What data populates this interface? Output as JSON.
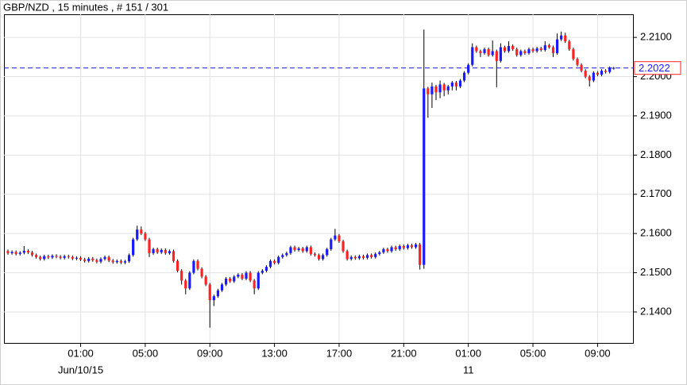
{
  "chart_data": {
    "type": "candlestick",
    "title": "GBP/NZD , 15 minutes , # 151 / 301",
    "categories": [
      null,
      null,
      null,
      null,
      null,
      null,
      null,
      null,
      null,
      null,
      null,
      null,
      null,
      null,
      null,
      null,
      null,
      null,
      "01:00",
      null,
      null,
      null,
      null,
      null,
      null,
      null,
      null,
      null,
      null,
      null,
      null,
      null,
      null,
      null,
      "05:00",
      null,
      null,
      null,
      null,
      null,
      null,
      null,
      null,
      null,
      null,
      null,
      null,
      null,
      null,
      null,
      "09:00",
      null,
      null,
      null,
      null,
      null,
      null,
      null,
      null,
      null,
      null,
      null,
      null,
      null,
      null,
      null,
      "13:00",
      null,
      null,
      null,
      null,
      null,
      null,
      null,
      null,
      null,
      null,
      null,
      null,
      null,
      null,
      null,
      "17:00",
      null,
      null,
      null,
      null,
      null,
      null,
      null,
      null,
      null,
      null,
      null,
      null,
      null,
      null,
      null,
      "21:00",
      null,
      null,
      null,
      null,
      null,
      null,
      null,
      null,
      null,
      null,
      null,
      null,
      null,
      null,
      null,
      "01:00",
      null,
      null,
      null,
      null,
      null,
      null,
      null,
      null,
      null,
      null,
      null,
      null,
      null,
      null,
      null,
      "05:00",
      null,
      null,
      null,
      null,
      null,
      null,
      null,
      null,
      null,
      null,
      null,
      null,
      null,
      null,
      null,
      "09:00",
      null,
      null,
      null,
      null
    ],
    "dates": [
      null,
      null,
      null,
      null,
      null,
      null,
      null,
      null,
      null,
      null,
      null,
      null,
      null,
      null,
      null,
      null,
      null,
      null,
      "Jun/10/15",
      null,
      null,
      null,
      null,
      null,
      null,
      null,
      null,
      null,
      null,
      null,
      null,
      null,
      null,
      null,
      null,
      null,
      null,
      null,
      null,
      null,
      null,
      null,
      null,
      null,
      null,
      null,
      null,
      null,
      null,
      null,
      null,
      null,
      null,
      null,
      null,
      null,
      null,
      null,
      null,
      null,
      null,
      null,
      null,
      null,
      null,
      null,
      null,
      null,
      null,
      null,
      null,
      null,
      null,
      null,
      null,
      null,
      null,
      null,
      null,
      null,
      null,
      null,
      null,
      null,
      null,
      null,
      null,
      null,
      null,
      null,
      null,
      null,
      null,
      null,
      null,
      null,
      null,
      null,
      null,
      null,
      null,
      null,
      null,
      null,
      null,
      null,
      null,
      null,
      null,
      null,
      null,
      null,
      null,
      null,
      "11",
      null,
      null,
      null,
      null,
      null,
      null,
      null,
      null,
      null,
      null,
      null,
      null,
      null,
      null,
      null,
      null,
      null,
      null,
      null,
      null,
      null,
      null,
      null,
      null,
      null,
      null,
      null,
      null,
      null,
      null,
      null,
      null,
      null,
      null
    ],
    "open": [
      2.1555,
      2.155,
      2.1553,
      2.1548,
      2.1551,
      2.1556,
      2.1552,
      2.1545,
      2.154,
      2.1535,
      2.1542,
      2.1539,
      2.1543,
      2.1541,
      2.1538,
      2.1542,
      2.154,
      2.1536,
      2.1538,
      2.1534,
      2.153,
      2.1536,
      2.1532,
      2.1528,
      2.1535,
      2.154,
      2.1531,
      2.1527,
      2.153,
      2.1526,
      2.1529,
      2.1545,
      2.1585,
      2.161,
      2.16,
      2.1585,
      2.155,
      2.156,
      2.1552,
      2.1558,
      2.155,
      2.1555,
      2.153,
      2.1505,
      2.148,
      2.146,
      2.15,
      2.153,
      2.151,
      2.149,
      2.147,
      2.143,
      2.144,
      2.1455,
      2.147,
      2.1485,
      2.1478,
      2.149,
      2.1495,
      2.1485,
      2.15,
      2.148,
      2.146,
      2.15,
      2.1505,
      2.1515,
      2.153,
      2.1525,
      2.154,
      2.1545,
      2.155,
      2.1565,
      2.1558,
      2.1562,
      2.1555,
      2.1565,
      2.1548,
      2.1545,
      2.1535,
      2.1545,
      2.156,
      2.1585,
      2.1595,
      2.158,
      2.1555,
      2.1535,
      2.154,
      2.1537,
      2.1542,
      2.1538,
      2.1545,
      2.154,
      2.1548,
      2.1552,
      2.156,
      2.1555,
      2.1565,
      2.156,
      2.1568,
      2.1563,
      2.157,
      2.1565,
      2.1572,
      2.152,
      2.197,
      2.1955,
      2.1975,
      2.196,
      2.198,
      2.1965,
      2.1975,
      2.1985,
      2.1975,
      2.199,
      2.201,
      2.203,
      2.2075,
      2.2065,
      2.206,
      2.207,
      2.2055,
      2.2065,
      2.204,
      2.2075,
      2.2065,
      2.2078,
      2.207,
      2.2055,
      2.2065,
      2.206,
      2.207,
      2.2065,
      2.2072,
      2.2068,
      2.208,
      2.2075,
      2.206,
      2.2095,
      2.2105,
      2.209,
      2.207,
      2.2045,
      2.203,
      2.2015,
      2.2,
      2.199,
      2.201,
      2.2005,
      2.2015,
      2.2012,
      2.2022
    ],
    "high": [
      2.1559,
      2.1557,
      2.1557,
      2.1555,
      2.1568,
      2.156,
      2.1556,
      2.1549,
      2.1544,
      2.1546,
      2.1546,
      2.1547,
      2.1547,
      2.1545,
      2.1546,
      2.1546,
      2.1544,
      2.1542,
      2.1542,
      2.1538,
      2.154,
      2.154,
      2.1536,
      2.1539,
      2.1544,
      2.1544,
      2.1535,
      2.1534,
      2.1534,
      2.1533,
      2.1549,
      2.1589,
      2.162,
      2.1618,
      2.1604,
      2.1589,
      2.1564,
      2.1564,
      2.1562,
      2.1562,
      2.1559,
      2.1559,
      2.1534,
      2.1509,
      2.1484,
      2.1504,
      2.1534,
      2.1534,
      2.1514,
      2.1494,
      2.1474,
      2.1444,
      2.1459,
      2.1474,
      2.1489,
      2.1489,
      2.1494,
      2.1499,
      2.1499,
      2.1504,
      2.1504,
      2.1484,
      2.1504,
      2.1509,
      2.1519,
      2.1534,
      2.1534,
      2.1544,
      2.1549,
      2.1554,
      2.1569,
      2.1569,
      2.1566,
      2.1566,
      2.1569,
      2.1569,
      2.1552,
      2.1549,
      2.1549,
      2.1564,
      2.1589,
      2.1612,
      2.1599,
      2.1584,
      2.1559,
      2.1544,
      2.1544,
      2.1546,
      2.1546,
      2.1549,
      2.1549,
      2.1552,
      2.1556,
      2.1564,
      2.1564,
      2.1569,
      2.1569,
      2.1572,
      2.1572,
      2.1574,
      2.1574,
      2.1576,
      2.1576,
      2.212,
      2.1974,
      2.1985,
      2.1979,
      2.199,
      2.1984,
      2.1979,
      2.1989,
      2.1989,
      2.1994,
      2.2014,
      2.2034,
      2.2085,
      2.2079,
      2.2069,
      2.2074,
      2.2074,
      2.2092,
      2.2069,
      2.2085,
      2.2079,
      2.209,
      2.2082,
      2.2074,
      2.2069,
      2.2069,
      2.2074,
      2.2074,
      2.2076,
      2.2076,
      2.209,
      2.2084,
      2.2079,
      2.211,
      2.2115,
      2.2112,
      2.2094,
      2.2074,
      2.2049,
      2.2034,
      2.2019,
      2.2004,
      2.2014,
      2.2014,
      2.2019,
      2.2019,
      2.2026,
      2.2025
    ],
    "low": [
      2.1546,
      2.1546,
      2.1544,
      2.1544,
      2.1547,
      2.1548,
      2.1541,
      2.1536,
      2.1531,
      2.1531,
      2.1535,
      2.1535,
      2.1537,
      2.1534,
      2.1534,
      2.1536,
      2.1532,
      2.1532,
      2.153,
      2.1526,
      2.1526,
      2.1528,
      2.1524,
      2.1524,
      2.1531,
      2.1527,
      2.1523,
      2.1523,
      2.1522,
      2.1522,
      2.1525,
      2.1541,
      2.1581,
      2.1596,
      2.1581,
      2.154,
      2.1546,
      2.1548,
      2.1548,
      2.1546,
      2.1546,
      2.1526,
      2.1501,
      2.147,
      2.1445,
      2.1456,
      2.1496,
      2.1506,
      2.1486,
      2.1466,
      2.136,
      2.1415,
      2.1436,
      2.1451,
      2.1466,
      2.1474,
      2.1474,
      2.1486,
      2.1481,
      2.1481,
      2.1476,
      2.1445,
      2.1456,
      2.1496,
      2.1501,
      2.1511,
      2.1521,
      2.1521,
      2.1536,
      2.1541,
      2.1546,
      2.1554,
      2.1554,
      2.1551,
      2.1551,
      2.1544,
      2.1541,
      2.1531,
      2.1531,
      2.1541,
      2.1556,
      2.1581,
      2.1576,
      2.1551,
      2.1531,
      2.1531,
      2.1533,
      2.1533,
      2.1534,
      2.1534,
      2.1536,
      2.1536,
      2.1544,
      2.1548,
      2.1551,
      2.1551,
      2.1556,
      2.1556,
      2.1559,
      2.1559,
      2.1561,
      2.1561,
      2.1508,
      2.151,
      2.1895,
      2.192,
      2.194,
      2.1945,
      2.195,
      2.1955,
      2.1965,
      2.1965,
      2.1971,
      2.1986,
      2.2006,
      2.2026,
      2.2061,
      2.205,
      2.2056,
      2.2051,
      2.2051,
      2.1973,
      2.2036,
      2.2061,
      2.2061,
      2.2066,
      2.2051,
      2.2051,
      2.2056,
      2.2056,
      2.2061,
      2.2061,
      2.2064,
      2.2064,
      2.2071,
      2.205,
      2.2056,
      2.2091,
      2.2086,
      2.2066,
      2.2041,
      2.2026,
      2.2011,
      2.1996,
      2.1975,
      2.1986,
      2.2001,
      2.2001,
      2.2008,
      2.2008,
      2.2018
    ],
    "close": [
      2.155,
      2.1553,
      2.1548,
      2.1551,
      2.1556,
      2.1552,
      2.1545,
      2.154,
      2.1535,
      2.1542,
      2.1539,
      2.1543,
      2.1541,
      2.1538,
      2.1542,
      2.154,
      2.1536,
      2.1538,
      2.1534,
      2.153,
      2.1536,
      2.1532,
      2.1528,
      2.1535,
      2.154,
      2.1531,
      2.1527,
      2.153,
      2.1526,
      2.1529,
      2.1545,
      2.1585,
      2.161,
      2.16,
      2.1585,
      2.155,
      2.156,
      2.1552,
      2.1558,
      2.155,
      2.1555,
      2.153,
      2.1505,
      2.148,
      2.146,
      2.15,
      2.153,
      2.151,
      2.149,
      2.147,
      2.143,
      2.144,
      2.1455,
      2.147,
      2.1485,
      2.1478,
      2.149,
      2.1495,
      2.1485,
      2.15,
      2.148,
      2.146,
      2.15,
      2.1505,
      2.1515,
      2.153,
      2.1525,
      2.154,
      2.1545,
      2.155,
      2.1565,
      2.1558,
      2.1562,
      2.1555,
      2.1565,
      2.1548,
      2.1545,
      2.1535,
      2.1545,
      2.156,
      2.1585,
      2.1595,
      2.158,
      2.1555,
      2.1535,
      2.154,
      2.1537,
      2.1542,
      2.1538,
      2.1545,
      2.154,
      2.1548,
      2.1552,
      2.156,
      2.1555,
      2.1565,
      2.156,
      2.1568,
      2.1563,
      2.157,
      2.1565,
      2.1572,
      2.152,
      2.197,
      2.1955,
      2.1975,
      2.196,
      2.198,
      2.1965,
      2.1975,
      2.1985,
      2.1975,
      2.199,
      2.201,
      2.203,
      2.2075,
      2.2065,
      2.206,
      2.207,
      2.2055,
      2.2065,
      2.204,
      2.2075,
      2.2065,
      2.2078,
      2.207,
      2.2055,
      2.2065,
      2.206,
      2.207,
      2.2065,
      2.2072,
      2.2068,
      2.208,
      2.2075,
      2.206,
      2.2095,
      2.2105,
      2.209,
      2.207,
      2.2045,
      2.203,
      2.2015,
      2.2,
      2.199,
      2.201,
      2.2005,
      2.2015,
      2.2012,
      2.2022,
      2.2022
    ],
    "up_color": "#1a1aff",
    "down_color": "#ff2222",
    "wick_color": "#000000",
    "last_price": {
      "value": 2.2022,
      "label": "2.2022"
    },
    "last_price_color": "#1a1aff",
    "ylim": [
      2.1321,
      2.2159
    ],
    "yticks": [
      {
        "value": 2.14,
        "label": "2.1400"
      },
      {
        "value": 2.15,
        "label": "2.1500"
      },
      {
        "value": 2.16,
        "label": "2.1600"
      },
      {
        "value": 2.17,
        "label": "2.1700"
      },
      {
        "value": 2.18,
        "label": "2.1800"
      },
      {
        "value": 2.19,
        "label": "2.1900"
      },
      {
        "value": 2.2,
        "label": "2.2000"
      },
      {
        "value": 2.21,
        "label": "2.2100"
      }
    ],
    "grid": true
  }
}
